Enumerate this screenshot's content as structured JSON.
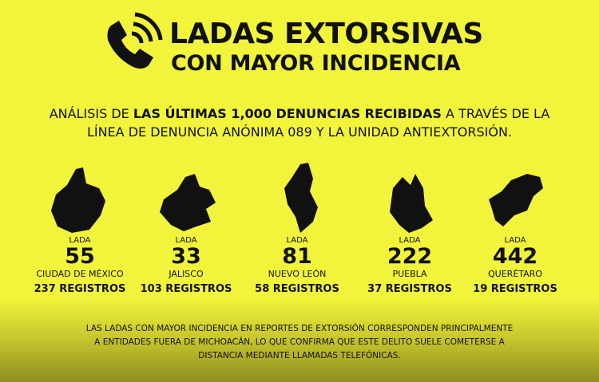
{
  "header": {
    "title_line1": "LADAS EXTORSIVAS",
    "title_line2": "CON MAYOR INCIDENCIA"
  },
  "intro": {
    "part1": "ANÁLISIS DE",
    "highlight": "LAS ÚLTIMAS 1,000 DENUNCIAS RECIBIDAS",
    "part2": "A TRAVÉS DE LA",
    "line2": "LÍNEA DE DENUNCIA ANÓNIMA 089 Y LA UNIDAD ANTIEXTORSIÓN."
  },
  "items": [
    {
      "label": "LADA",
      "code": "55",
      "state": "CIUDAD DE MÉXICO",
      "records": "237 REGISTROS"
    },
    {
      "label": "LADA",
      "code": "33",
      "state": "JALISCO",
      "records": "103 REGISTROS"
    },
    {
      "label": "LADA",
      "code": "81",
      "state": "NUEVO LEÓN",
      "records": "58 REGISTROS"
    },
    {
      "label": "LADA",
      "code": "222",
      "state": "PUEBLA",
      "records": "37 REGISTROS"
    },
    {
      "label": "LADA",
      "code": "442",
      "state": "QUERÉTARO",
      "records": "19 REGISTROS"
    }
  ],
  "footer": {
    "lines": [
      "LAS LADAS CON MAYOR INCIDENCIA EN REPORTES DE EXTORSIÓN CORRESPONDEN PRINCIPALMENTE",
      "A ENTIDADES FUERA DE MICHOACÁN, LO QUE CONFIRMA QUE ESTE DELITO SUELE COMETERSE A",
      "DISTANCIA MEDIANTE LLAMADAS TELEFÓNICAS."
    ]
  }
}
